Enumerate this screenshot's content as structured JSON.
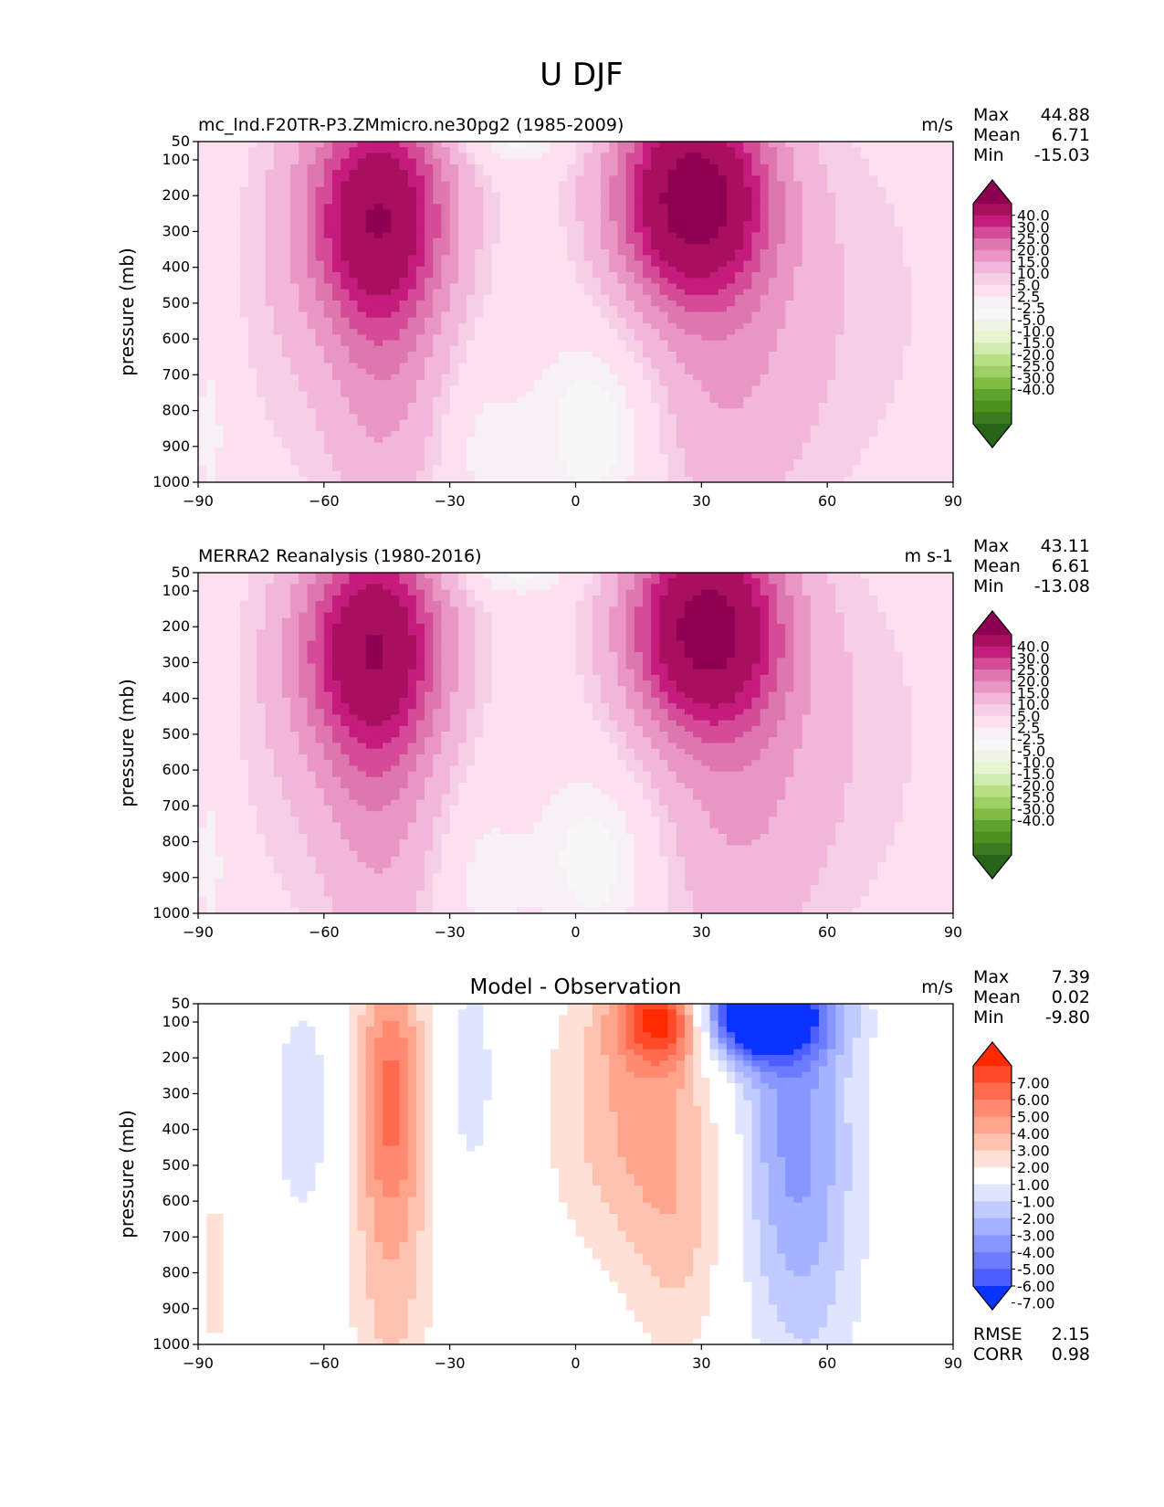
{
  "figure_title": "U DJF",
  "chart_data": [
    {
      "type": "contour",
      "title": "mc_lnd.F20TR-P3.ZMmicro.ne30pg2 (1985-2009)",
      "units": "m/s",
      "xlabel": "",
      "ylabel": "pressure (mb)",
      "xlim": [
        -90,
        90
      ],
      "ylim": [
        1000,
        50
      ],
      "x_ticks": [
        "−90",
        "−60",
        "−30",
        "0",
        "30",
        "60",
        "90"
      ],
      "y_ticks": [
        "50",
        "100",
        "200",
        "300",
        "400",
        "500",
        "600",
        "700",
        "800",
        "900",
        "1000"
      ],
      "stats": [
        {
          "label": "Max",
          "value": "44.88"
        },
        {
          "label": "Mean",
          "value": "6.71"
        },
        {
          "label": "Min",
          "value": "-15.03"
        }
      ],
      "colorbar_levels": [
        "40.0",
        "30.0",
        "25.0",
        "20.0",
        "15.0",
        "10.0",
        "5.0",
        "2.5",
        "-2.5",
        "-5.0",
        "-10.0",
        "-15.0",
        "-20.0",
        "-25.0",
        "-30.0",
        "-40.0"
      ],
      "colormap": "PiYG",
      "colorbar_colors": [
        "#8e0152",
        "#a8105f",
        "#c51b7d",
        "#d64b97",
        "#de77ae",
        "#e996c4",
        "#f1b6da",
        "#f6cfe6",
        "#fde0ef",
        "#f7f0f4",
        "#f7f7f7",
        "#eef5e4",
        "#e6f5d0",
        "#d1ecb2",
        "#b8e186",
        "#9ccf66",
        "#7fbc41",
        "#5ea22f",
        "#4d9221",
        "#3b7a1f",
        "#276419"
      ],
      "features": [
        {
          "kind": "jet",
          "label": "southern jet",
          "lat": -47,
          "pressure": 250,
          "peak": 38
        },
        {
          "kind": "jet",
          "label": "northern jet",
          "lat": 28,
          "pressure": 200,
          "peak": 44.88
        },
        {
          "kind": "easterly",
          "label": "tropical easterlies",
          "lat": 5,
          "pressure": 850,
          "peak": -8
        }
      ]
    },
    {
      "type": "contour",
      "title": "MERRA2 Reanalysis (1980-2016)",
      "units": "m s-1",
      "xlabel": "",
      "ylabel": "pressure (mb)",
      "xlim": [
        -90,
        90
      ],
      "ylim": [
        1000,
        50
      ],
      "x_ticks": [
        "−90",
        "−60",
        "−30",
        "0",
        "30",
        "60",
        "90"
      ],
      "y_ticks": [
        "50",
        "100",
        "200",
        "300",
        "400",
        "500",
        "600",
        "700",
        "800",
        "900",
        "1000"
      ],
      "stats": [
        {
          "label": "Max",
          "value": "43.11"
        },
        {
          "label": "Mean",
          "value": "6.61"
        },
        {
          "label": "Min",
          "value": "-13.08"
        }
      ],
      "colorbar_levels": [
        "40.0",
        "30.0",
        "25.0",
        "20.0",
        "15.0",
        "10.0",
        "5.0",
        "2.5",
        "-2.5",
        "-5.0",
        "-10.0",
        "-15.0",
        "-20.0",
        "-25.0",
        "-30.0",
        "-40.0"
      ],
      "colormap": "PiYG",
      "colorbar_colors": [
        "#8e0152",
        "#a8105f",
        "#c51b7d",
        "#d64b97",
        "#de77ae",
        "#e996c4",
        "#f1b6da",
        "#f6cfe6",
        "#fde0ef",
        "#f7f0f4",
        "#f7f7f7",
        "#eef5e4",
        "#e6f5d0",
        "#d1ecb2",
        "#b8e186",
        "#9ccf66",
        "#7fbc41",
        "#5ea22f",
        "#4d9221",
        "#3b7a1f",
        "#276419"
      ],
      "features": [
        {
          "kind": "jet",
          "label": "southern jet",
          "lat": -48,
          "pressure": 250,
          "peak": 38
        },
        {
          "kind": "jet",
          "label": "northern jet",
          "lat": 31,
          "pressure": 200,
          "peak": 43.11
        },
        {
          "kind": "easterly",
          "label": "tropical easterlies",
          "lat": 5,
          "pressure": 850,
          "peak": -7
        }
      ]
    },
    {
      "type": "contour",
      "title": "Model - Observation",
      "units": "m/s",
      "xlabel": "",
      "ylabel": "pressure (mb)",
      "xlim": [
        -90,
        90
      ],
      "ylim": [
        1000,
        50
      ],
      "x_ticks": [
        "−90",
        "−60",
        "−30",
        "0",
        "30",
        "60",
        "90"
      ],
      "y_ticks": [
        "50",
        "100",
        "200",
        "300",
        "400",
        "500",
        "600",
        "700",
        "800",
        "900",
        "1000"
      ],
      "stats": [
        {
          "label": "Max",
          "value": "7.39"
        },
        {
          "label": "Mean",
          "value": "0.02"
        },
        {
          "label": "Min",
          "value": "-9.80"
        }
      ],
      "extra_stats": [
        {
          "label": "RMSE",
          "value": "2.15"
        },
        {
          "label": "CORR",
          "value": "0.98"
        }
      ],
      "colorbar_levels": [
        "7.00",
        "6.00",
        "5.00",
        "4.00",
        "3.00",
        "2.00",
        "1.00",
        "-1.00",
        "-2.00",
        "-3.00",
        "-4.00",
        "-5.00",
        "-6.00",
        "-7.00"
      ],
      "colormap": "bwr",
      "colorbar_colors": [
        "#ff2a00",
        "#ff4a2a",
        "#ff6b4f",
        "#ff8a6f",
        "#ffa48c",
        "#ffc2b0",
        "#ffe0d6",
        "#ffffff",
        "#dfe4ff",
        "#c2cbff",
        "#a5b2ff",
        "#8897ff",
        "#6b7cff",
        "#4d60ff",
        "#0b33ff"
      ],
      "features": [
        {
          "kind": "positive",
          "label": "southern positive column",
          "lat": -45,
          "pressure": 300,
          "peak": 4
        },
        {
          "kind": "positive",
          "label": "subtropical positive",
          "lat": 23,
          "pressure": 100,
          "peak": 7.39
        },
        {
          "kind": "negative",
          "label": "northern negative",
          "lat": 42,
          "pressure": 100,
          "peak": -9.8
        },
        {
          "kind": "negative",
          "label": "southern negative",
          "lat": -65,
          "pressure": 350,
          "peak": -2
        }
      ]
    }
  ]
}
